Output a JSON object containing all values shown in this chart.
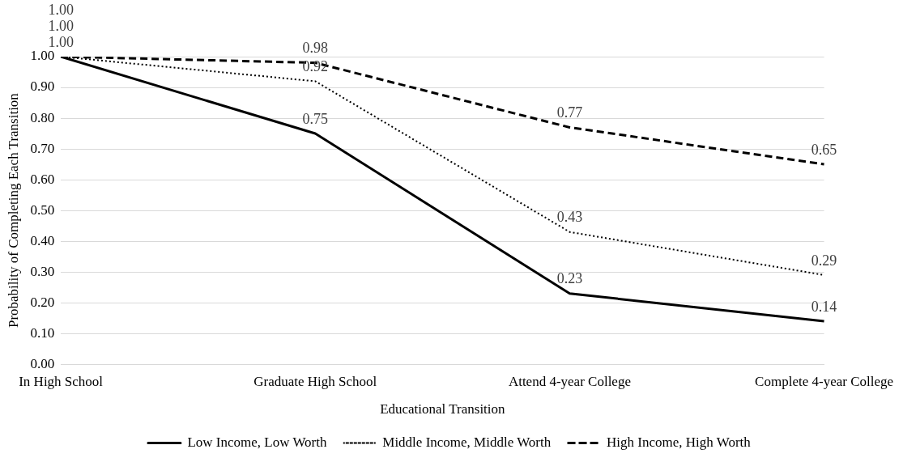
{
  "chart_data": {
    "type": "line",
    "xlabel": "Educational Transition",
    "ylabel": "Probability of Completing Each Transition",
    "categories": [
      "In High School",
      "Graduate High School",
      "Attend 4-year College",
      "Complete 4-year College"
    ],
    "series": [
      {
        "name": "Low Income, Low Worth",
        "color": "#000000",
        "line_style": "solid",
        "values": [
          1.0,
          0.75,
          0.23,
          0.14
        ],
        "value_labels": [
          "1.00",
          "0.75",
          "0.23",
          "0.14"
        ]
      },
      {
        "name": "Middle Income, Middle Worth",
        "color": "#000000",
        "line_style": "dotted",
        "values": [
          1.0,
          0.92,
          0.43,
          0.29
        ],
        "value_labels": [
          "1.00",
          "0.92",
          "0.43",
          "0.29"
        ]
      },
      {
        "name": "High Income, High Worth",
        "color": "#000000",
        "line_style": "dashed",
        "values": [
          1.0,
          0.98,
          0.77,
          0.65
        ],
        "value_labels": [
          "1.00",
          "0.98",
          "0.77",
          "0.65"
        ]
      }
    ],
    "ylim": [
      0,
      1
    ],
    "yticks": [
      {
        "value": 0,
        "label": "0.00"
      },
      {
        "value": 0.1,
        "label": "0.10"
      },
      {
        "value": 0.2,
        "label": "0.20"
      },
      {
        "value": 0.3,
        "label": "0.30"
      },
      {
        "value": 0.4,
        "label": "0.40"
      },
      {
        "value": 0.5,
        "label": "0.50"
      },
      {
        "value": 0.6,
        "label": "0.60"
      },
      {
        "value": 0.7,
        "label": "0.70"
      },
      {
        "value": 0.8,
        "label": "0.80"
      },
      {
        "value": 0.9,
        "label": "0.90"
      },
      {
        "value": 1,
        "label": "1.00"
      }
    ],
    "grid": "y",
    "legend": "bottom",
    "marker": "none"
  }
}
